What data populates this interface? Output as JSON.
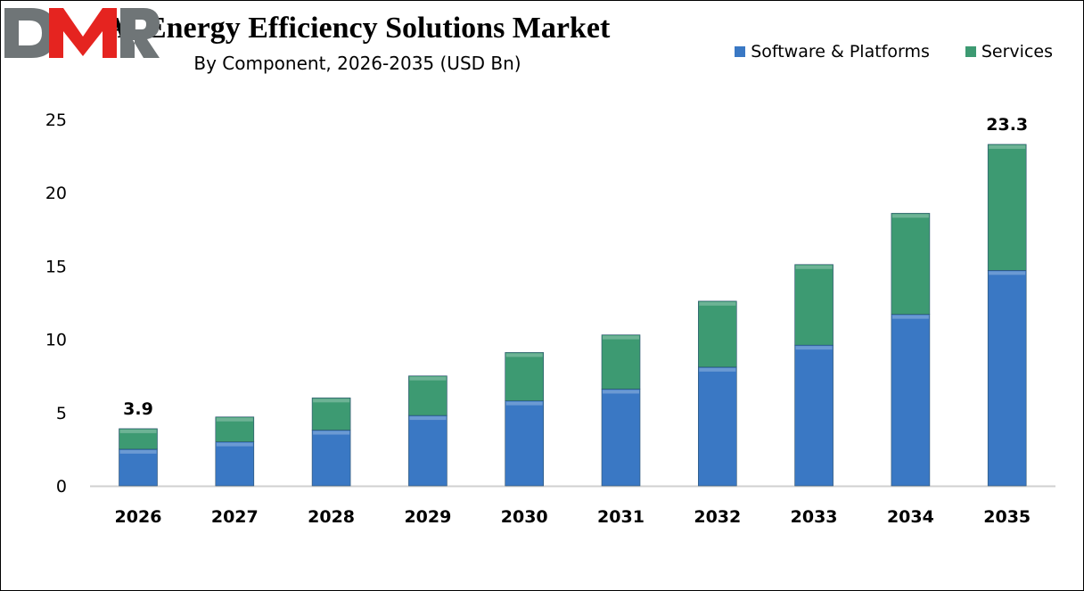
{
  "chart_data": {
    "type": "bar",
    "stacked": true,
    "title": "AI Energy Efficiency Solutions Market",
    "subtitle": "By Component, 2026-2035 (USD Bn)",
    "xlabel": "",
    "ylabel": "",
    "ylim": [
      0,
      25
    ],
    "yticks": [
      "0",
      "5",
      "10",
      "15",
      "20",
      "25"
    ],
    "grid": false,
    "legend": "top-right",
    "categories": [
      "2026",
      "2027",
      "2028",
      "2029",
      "2030",
      "2031",
      "2032",
      "2033",
      "2034",
      "2035"
    ],
    "series": [
      {
        "name": "Software & Platforms",
        "color": "#3a78c4",
        "values": [
          2.5,
          3.0,
          3.8,
          4.8,
          5.8,
          6.6,
          8.1,
          9.6,
          11.7,
          14.7
        ]
      },
      {
        "name": "Services",
        "color": "#3d9a72",
        "values": [
          1.4,
          1.7,
          2.2,
          2.7,
          3.3,
          3.7,
          4.5,
          5.5,
          6.9,
          8.6
        ]
      }
    ],
    "data_labels": [
      {
        "category": "2026",
        "text": "3.9"
      },
      {
        "category": "2035",
        "text": "23.3"
      }
    ]
  },
  "logo": {
    "text": "DMR",
    "colors": [
      "#6f7577",
      "#e52420"
    ]
  }
}
